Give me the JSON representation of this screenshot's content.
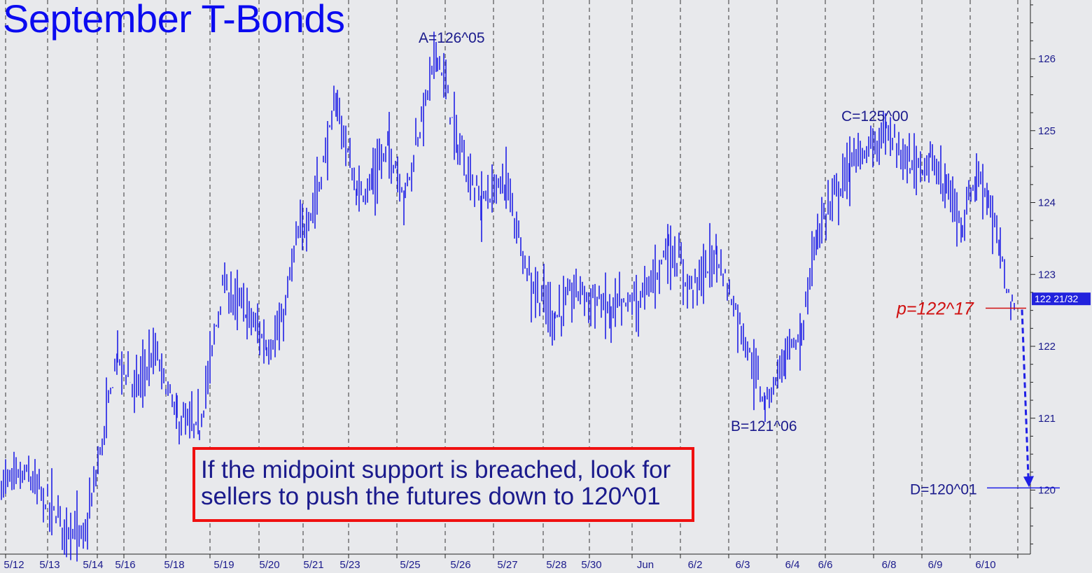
{
  "chart_data": {
    "type": "ohlc",
    "title": "September T-Bonds",
    "xlabel": "",
    "ylabel": "",
    "ylim": [
      119.1,
      127.3
    ],
    "y_ticks": [
      120,
      121,
      122,
      123,
      124,
      125,
      126
    ],
    "x_tick_labels": [
      "5/12",
      "5/13",
      "5/14",
      "5/16",
      "5/18",
      "5/19",
      "5/20",
      "5/21",
      "5/23",
      "5/25",
      "5/26",
      "5/27",
      "5/28",
      "5/30",
      "Jun",
      "6/2",
      "6/3",
      "6/4",
      "6/6",
      "6/8",
      "6/9",
      "6/10"
    ],
    "grid": "vertical dashed day separators",
    "series_color": "#1f1fe6",
    "price_path": [
      [
        "5/12",
        120.2
      ],
      [
        "5/13",
        119.6
      ],
      [
        "5/13",
        119.3
      ],
      [
        "5/14",
        120.8
      ],
      [
        "5/14",
        121.9
      ],
      [
        "5/16",
        121.4
      ],
      [
        "5/16",
        121.9
      ],
      [
        "5/18",
        121.0
      ],
      [
        "5/18",
        120.8
      ],
      [
        "5/19",
        122.8
      ],
      [
        "5/19",
        122.5
      ],
      [
        "5/20",
        122.0
      ],
      [
        "5/20",
        122.2
      ],
      [
        "5/20",
        123.4
      ],
      [
        "5/21",
        124.0
      ],
      [
        "5/21",
        125.4
      ],
      [
        "5/23",
        124.1
      ],
      [
        "5/23",
        124.3
      ],
      [
        "5/23",
        124.8
      ],
      [
        "5/25",
        124.1
      ],
      [
        "5/25",
        125.1
      ],
      [
        "5/25",
        126.16
      ],
      [
        "5/26",
        124.8
      ],
      [
        "5/26",
        124.0
      ],
      [
        "5/27",
        124.3
      ],
      [
        "5/27",
        122.9
      ],
      [
        "5/28",
        122.4
      ],
      [
        "5/28",
        122.8
      ],
      [
        "5/30",
        122.5
      ],
      [
        "Jun",
        122.7
      ],
      [
        "Jun",
        123.4
      ],
      [
        "6/2",
        122.8
      ],
      [
        "6/2",
        123.3
      ],
      [
        "6/3",
        122.3
      ],
      [
        "6/3",
        121.19
      ],
      [
        "6/4",
        121.9
      ],
      [
        "6/4",
        122.1
      ],
      [
        "6/4",
        123.6
      ],
      [
        "6/6",
        124.5
      ],
      [
        "6/8",
        125.0
      ],
      [
        "6/8",
        124.5
      ],
      [
        "6/9",
        124.6
      ],
      [
        "6/9",
        124.2
      ],
      [
        "6/9",
        123.7
      ],
      [
        "6/10",
        124.4
      ],
      [
        "6/10",
        124.1
      ],
      [
        "6/10",
        123.3
      ],
      [
        "6/10",
        122.53
      ]
    ],
    "current_price_label": "122 21/32",
    "annotations": {
      "A": "A=126^05",
      "B": "B=121^06",
      "C": "C=125^00",
      "D": "D=120^01",
      "p": "p=122^17"
    },
    "levels": {
      "p": 122.53,
      "D": 120.03
    },
    "note_lines": [
      "If the midpoint support is breached, look for",
      "sellers to push the futures down to 120^01"
    ],
    "colors": {
      "background": "#e8e9ec",
      "bars": "#1f1fe6",
      "title": "#0b0bf0",
      "label": "#1a1a8c",
      "p_line": "#d01010",
      "note_border": "#f01010",
      "price_badge": "#2222dd"
    }
  }
}
